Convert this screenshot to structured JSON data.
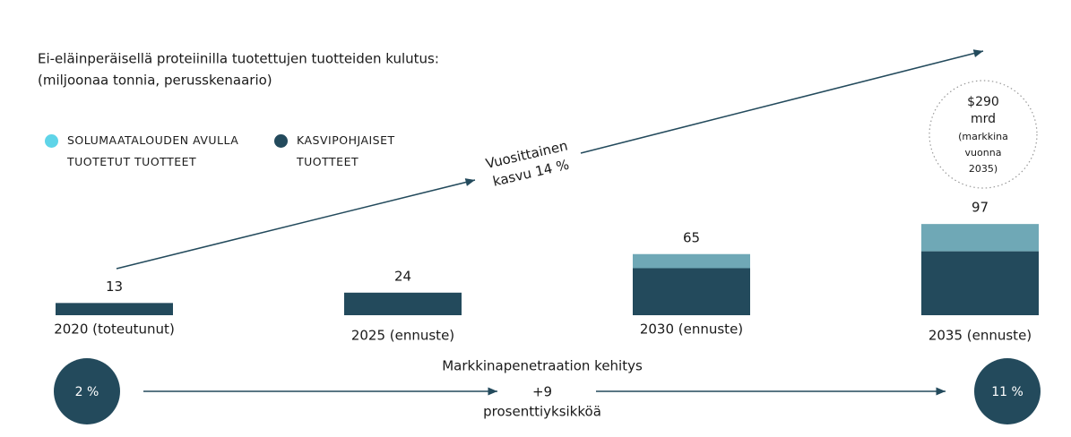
{
  "chart_data": {
    "type": "bar",
    "stacked": true,
    "title": "Ei-eläinperäisellä proteiinilla tuotettujen tuotteiden kulutus:",
    "subtitle": "(miljoonaa tonnia, perusskenaario)",
    "categories": [
      "2020 (toteutunut)",
      "2025 (ennuste)",
      "2030 (ennuste)",
      "2035 (ennuste)"
    ],
    "series": [
      {
        "name": "KASVIPOHJAISET TUOTTEET",
        "color": "#234a5c",
        "legend_color": "#234a5c",
        "values": [
          13,
          24,
          50,
          68
        ]
      },
      {
        "name": "SOLUMAATALOUDEN AVULLA TUOTETUT TUOTTEET",
        "color": "#6fa8b6",
        "legend_color": "#5fd4e8",
        "values": [
          null,
          null,
          15,
          29
        ]
      }
    ],
    "totals": [
      13,
      24,
      65,
      97
    ],
    "ylim": [
      0,
      100
    ],
    "growth_label": [
      "Vuosittainen",
      "kasvu 14 %"
    ],
    "market_note": [
      "$290",
      "mrd",
      "(markkina",
      "vuonna",
      "2035)"
    ],
    "penetration": {
      "title": "Markkinapenetraation kehitys",
      "start": "2 %",
      "end": "11 %",
      "change": [
        "+9",
        "prosenttiyksikköä"
      ]
    }
  }
}
